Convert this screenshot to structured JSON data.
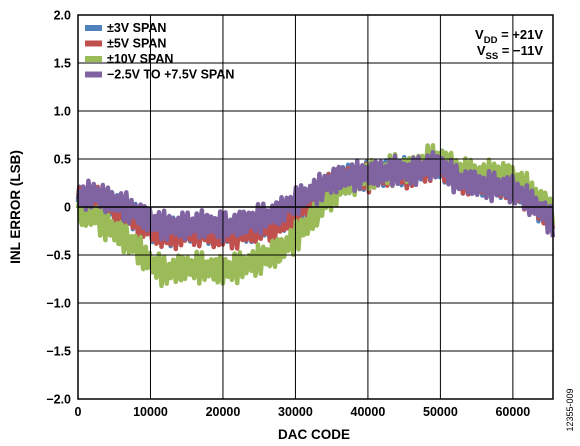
{
  "chart_data": {
    "type": "line",
    "title": "",
    "xlabel": "DAC CODE",
    "ylabel": "INL ERROR (LSB)",
    "xlim": [
      0,
      65535
    ],
    "ylim": [
      -2.0,
      2.0
    ],
    "x_ticks": [
      0,
      10000,
      20000,
      30000,
      40000,
      50000,
      60000
    ],
    "x_tick_labels": [
      "0",
      "10000",
      "20000",
      "30000",
      "40000",
      "50000",
      "60000"
    ],
    "y_ticks": [
      -2.0,
      -1.5,
      -1.0,
      -0.5,
      0,
      0.5,
      1.0,
      1.5,
      2.0
    ],
    "y_tick_labels": [
      "−2.0",
      "−1.5",
      "−1.0",
      "−0.5",
      "0",
      "0.5",
      "1.0",
      "1.5",
      "2.0"
    ],
    "grid": true,
    "legend_placement": "top-left",
    "annotations": {
      "vdd": {
        "main": "V",
        "sub": "DD",
        "rest": " = +21V"
      },
      "vss": {
        "main": "V",
        "sub": "SS",
        "rest": " = −11V"
      }
    },
    "figure_id": "12355-009",
    "x": [
      0,
      2000,
      4000,
      6000,
      8000,
      10000,
      12000,
      14000,
      16000,
      18000,
      20000,
      22000,
      24000,
      26000,
      28000,
      30000,
      32000,
      34000,
      36000,
      38000,
      40000,
      42000,
      44000,
      46000,
      48000,
      50000,
      52000,
      54000,
      56000,
      58000,
      60000,
      62000,
      64000,
      65535
    ],
    "series": [
      {
        "name": "±3V SPAN",
        "color": "#4f81bd",
        "band": 0.12,
        "values": [
          0.05,
          0.1,
          0.02,
          -0.05,
          -0.12,
          -0.22,
          -0.28,
          -0.26,
          -0.24,
          -0.25,
          -0.28,
          -0.26,
          -0.22,
          -0.2,
          -0.16,
          -0.05,
          0.05,
          0.18,
          0.28,
          0.3,
          0.32,
          0.35,
          0.38,
          0.34,
          0.42,
          0.45,
          0.3,
          0.28,
          0.25,
          0.26,
          0.22,
          0.1,
          -0.02,
          -0.15
        ]
      },
      {
        "name": "±5V SPAN",
        "color": "#c0504d",
        "band": 0.12,
        "values": [
          0.05,
          0.1,
          0.02,
          -0.06,
          -0.13,
          -0.24,
          -0.3,
          -0.28,
          -0.26,
          -0.27,
          -0.3,
          -0.28,
          -0.24,
          -0.22,
          -0.18,
          -0.07,
          0.04,
          0.17,
          0.27,
          0.29,
          0.31,
          0.34,
          0.37,
          0.33,
          0.41,
          0.44,
          0.3,
          0.28,
          0.25,
          0.26,
          0.22,
          0.1,
          -0.02,
          -0.15
        ]
      },
      {
        "name": "±10V SPAN",
        "color": "#9bbb59",
        "band": 0.13,
        "values": [
          -0.05,
          -0.08,
          -0.2,
          -0.3,
          -0.42,
          -0.58,
          -0.68,
          -0.64,
          -0.62,
          -0.64,
          -0.66,
          -0.63,
          -0.58,
          -0.52,
          -0.45,
          -0.32,
          -0.15,
          0.05,
          0.2,
          0.28,
          0.33,
          0.36,
          0.4,
          0.38,
          0.48,
          0.5,
          0.38,
          0.35,
          0.32,
          0.34,
          0.3,
          0.18,
          0.05,
          -0.08
        ]
      },
      {
        "name": "−2.5V TO +7.5V SPAN",
        "color": "#8064a2",
        "band": 0.12,
        "values": [
          0.08,
          0.14,
          0.08,
          0.02,
          -0.06,
          -0.14,
          -0.2,
          -0.2,
          -0.18,
          -0.18,
          -0.2,
          -0.18,
          -0.14,
          -0.1,
          -0.04,
          0.06,
          0.14,
          0.22,
          0.3,
          0.32,
          0.34,
          0.36,
          0.38,
          0.36,
          0.42,
          0.44,
          0.3,
          0.26,
          0.22,
          0.22,
          0.18,
          0.08,
          -0.04,
          -0.18
        ]
      }
    ]
  }
}
